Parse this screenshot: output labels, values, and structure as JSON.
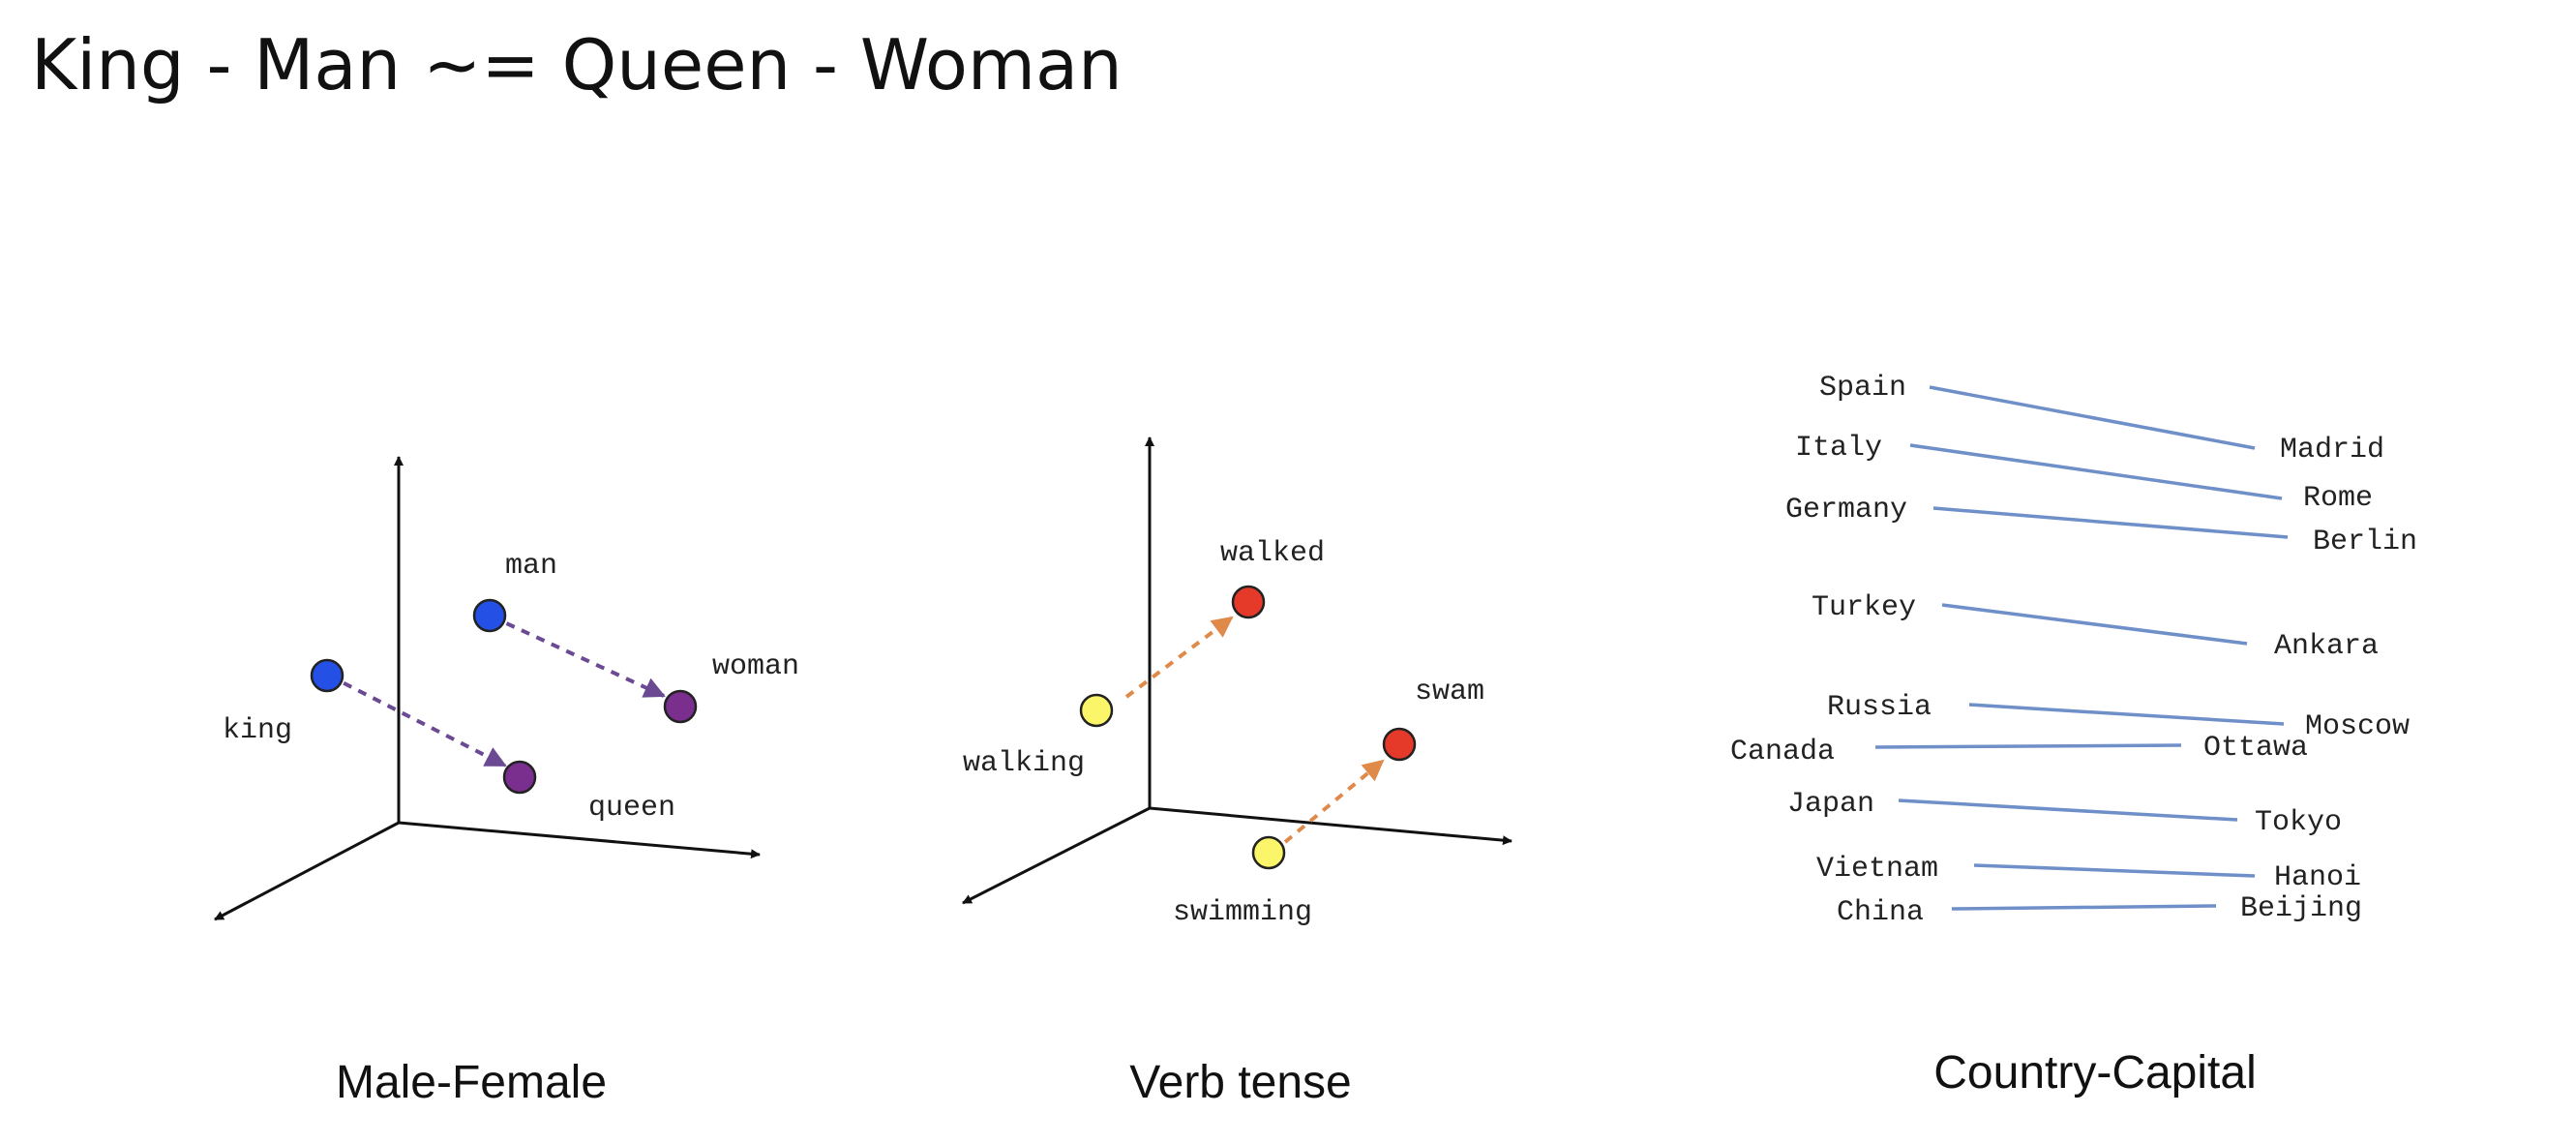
{
  "slide_title": "King - Man ~= Queen - Woman",
  "panels": {
    "male_female": {
      "caption": "Male-Female",
      "labels": {
        "king": "king",
        "man": "man",
        "woman": "woman",
        "queen": "queen"
      }
    },
    "verb_tense": {
      "caption": "Verb tense",
      "labels": {
        "walking": "walking",
        "walked": "walked",
        "swimming": "swimming",
        "swam": "swam"
      }
    },
    "country_capital": {
      "caption": "Country-Capital",
      "pairs": [
        {
          "country": "Spain",
          "capital": "Madrid"
        },
        {
          "country": "Italy",
          "capital": "Rome"
        },
        {
          "country": "Germany",
          "capital": "Berlin"
        },
        {
          "country": "Turkey",
          "capital": "Ankara"
        },
        {
          "country": "Russia",
          "capital": "Moscow"
        },
        {
          "country": "Canada",
          "capital": "Ottawa"
        },
        {
          "country": "Japan",
          "capital": "Tokyo"
        },
        {
          "country": "Vietnam",
          "capital": "Hanoi"
        },
        {
          "country": "China",
          "capital": "Beijing"
        }
      ]
    }
  },
  "colors": {
    "male": "#2450e6",
    "female": "#7a2f8e",
    "gender_arrow": "#6b4a93",
    "present": "#fbf56a",
    "past": "#e5392a",
    "tense_arrow": "#e08a4a",
    "link": "#6f8fc9"
  }
}
